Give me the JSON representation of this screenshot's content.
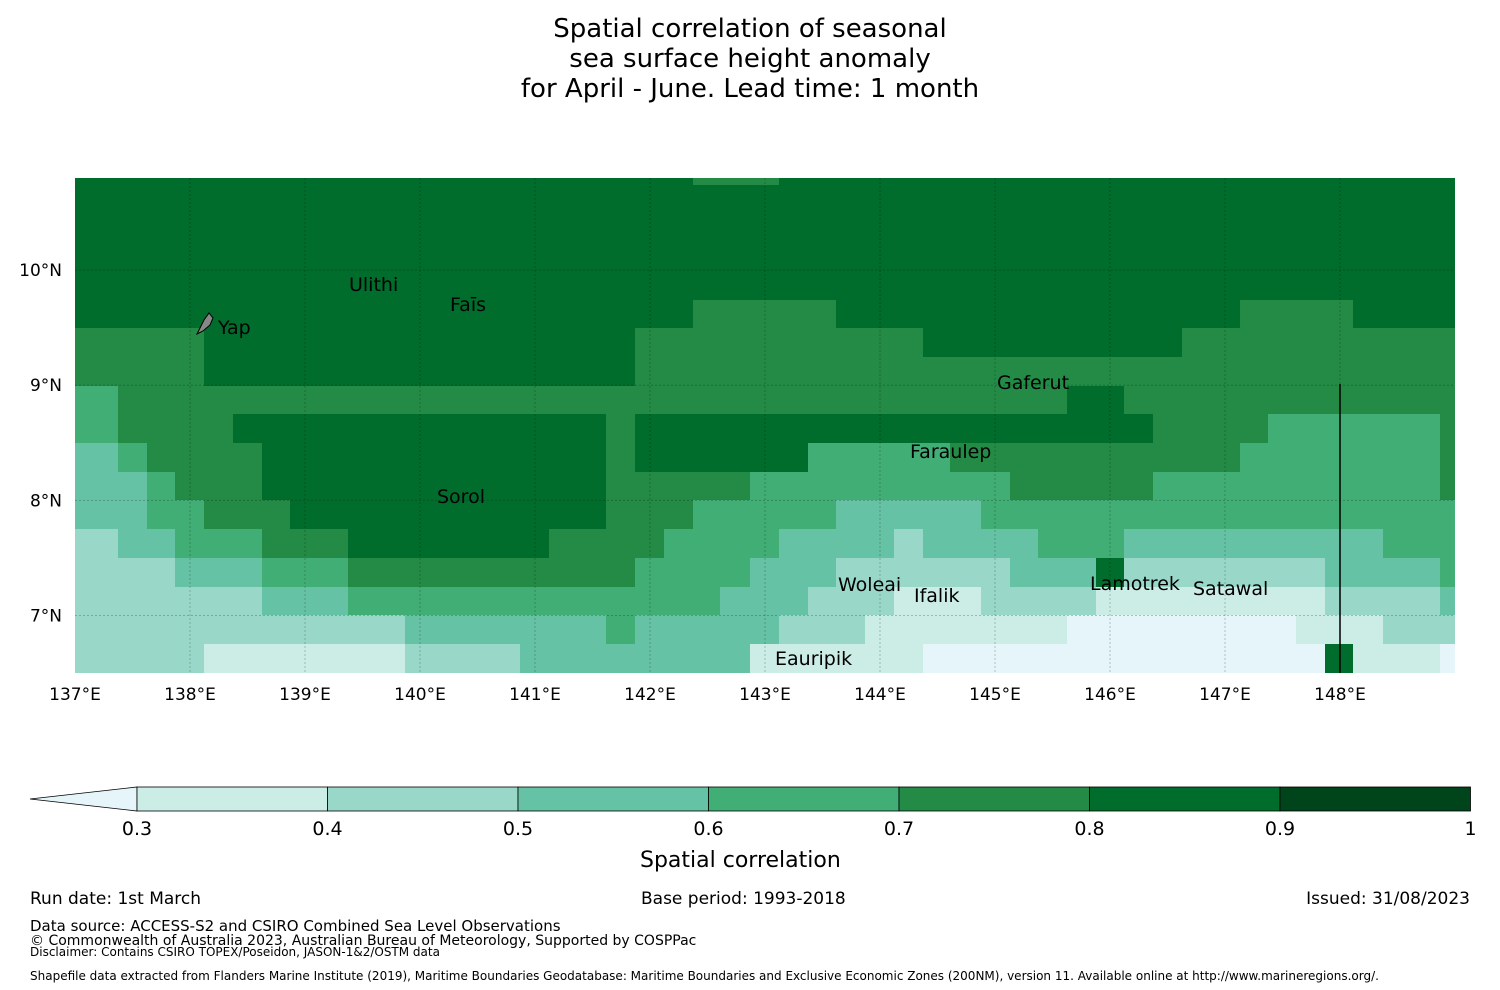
{
  "title": "Spatial correlation of seasonal\nsea surface height anomaly\nfor April - June. Lead time: 1 month",
  "map": {
    "lon_range": [
      137,
      149
    ],
    "lat_range": [
      6.5,
      10.8
    ],
    "x_ticks": [
      "137°E",
      "138°E",
      "139°E",
      "140°E",
      "141°E",
      "142°E",
      "143°E",
      "144°E",
      "145°E",
      "146°E",
      "147°E",
      "148°E"
    ],
    "y_ticks": [
      "10°N",
      "9°N",
      "8°N",
      "7°N"
    ],
    "islands": [
      {
        "name": "Ulithi"
      },
      {
        "name": "Faīs"
      },
      {
        "name": "Yap"
      },
      {
        "name": "Gaferut"
      },
      {
        "name": "Faraulep"
      },
      {
        "name": "Sorol"
      },
      {
        "name": "Woleai"
      },
      {
        "name": "Ifalik"
      },
      {
        "name": "Lamotrek"
      },
      {
        "name": "Satawal"
      },
      {
        "name": "Eauripik"
      }
    ]
  },
  "colorbar": {
    "label": "Spatial correlation",
    "ticks": [
      "0.3",
      "0.4",
      "0.5",
      "0.6",
      "0.7",
      "0.8",
      "0.9",
      "1"
    ],
    "colors": [
      "#e5f5f9",
      "#ccece6",
      "#99d8c9",
      "#66c2a4",
      "#41ae76",
      "#238b45",
      "#006d2c",
      "#00441b"
    ]
  },
  "footer": {
    "run_date": "Run date: 1st March",
    "base_period": "Base period: 1993-2018",
    "issued": "Issued: 31/08/2023",
    "data_source": "Data source: ACCESS-S2 and CSIRO Combined Sea Level Observations",
    "copyright": "© Commonwealth of Australia 2023, Australian Bureau of Meteorology, Supported by COSPPac",
    "disclaimer": "Disclaimer: Contains CSIRO TOPEX/Poseidon, JASON-1&2/OSTM data",
    "shapefile": "Shapefile data extracted from Flanders Marine Institute (2019), Maritime Boundaries Geodatabase: Maritime Boundaries and Exclusive Economic Zones (200NM), version 11. Available online at http://www.marineregions.org/."
  }
}
